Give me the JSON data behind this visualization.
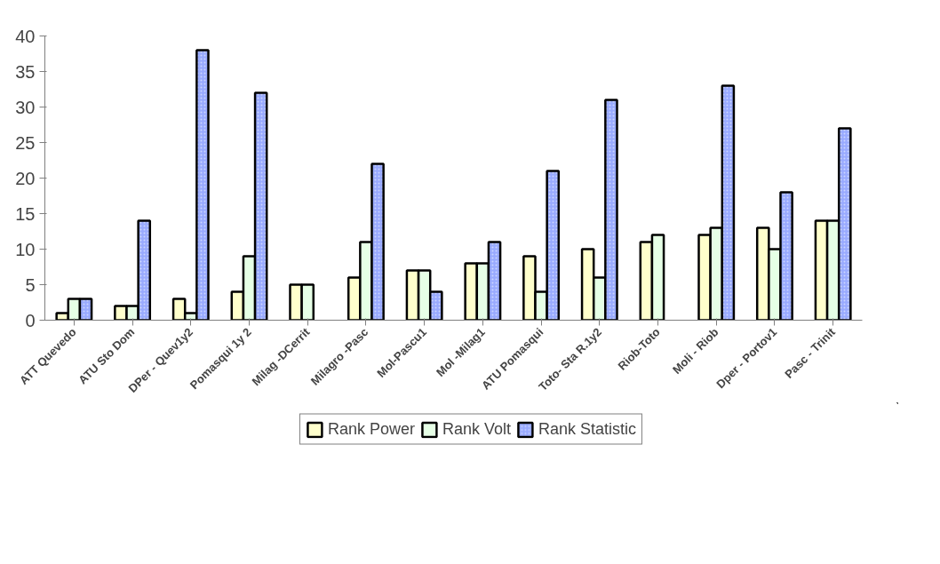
{
  "chart_data": {
    "type": "bar",
    "categories": [
      "ATT Quevedo",
      "ATU Sto Dom",
      "DPer - Quev1y2",
      "Pomasqui 1y 2",
      "Milag -DCerrit",
      "Milagro -Pasc",
      "Mol-Pascu1",
      "Mol -Milag1",
      "ATU Pomasqui",
      "Toto- Sta R.1y2",
      "Riob-Toto",
      "Moli - Riob",
      "Dper - Portov1",
      "Pasc - Trinit"
    ],
    "series": [
      {
        "name": "Rank Power",
        "color": "#ffffcc",
        "values": [
          1,
          2,
          3,
          4,
          5,
          6,
          7,
          8,
          9,
          10,
          11,
          12,
          13,
          14
        ]
      },
      {
        "name": "Rank Volt",
        "color": "#e6ffe6",
        "values": [
          3,
          2,
          1,
          9,
          5,
          11,
          7,
          8,
          4,
          6,
          12,
          13,
          10,
          14
        ]
      },
      {
        "name": "Rank Statistic",
        "color": "#99aaff",
        "values": [
          3,
          14,
          38,
          32,
          null,
          22,
          4,
          11,
          21,
          31,
          null,
          33,
          18,
          27
        ]
      }
    ],
    "ylim": [
      0,
      40
    ],
    "yticks": [
      0,
      5,
      10,
      15,
      20,
      25,
      30,
      35,
      40
    ],
    "grid": false,
    "legend": "bottom"
  }
}
